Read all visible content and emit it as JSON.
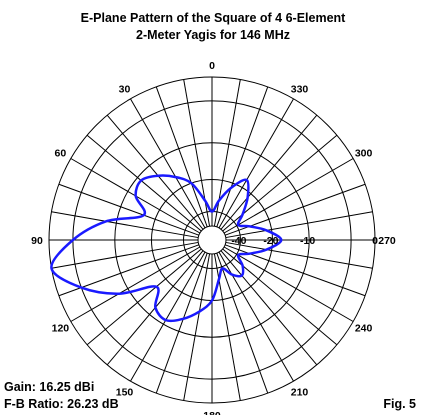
{
  "chart_data": {
    "type": "polar",
    "title": "E-Plane Pattern of the Square of 4 6-Element",
    "subtitle": "2-Meter Yagis for 146 MHz",
    "angle_labels": [
      {
        "deg": 0,
        "text": "0"
      },
      {
        "deg": 30,
        "text": "30"
      },
      {
        "deg": 60,
        "text": "60"
      },
      {
        "deg": 90,
        "text": "90"
      },
      {
        "deg": 120,
        "text": "120"
      },
      {
        "deg": 150,
        "text": "150"
      },
      {
        "deg": 180,
        "text": "180"
      },
      {
        "deg": 210,
        "text": "210"
      },
      {
        "deg": 240,
        "text": "240"
      },
      {
        "deg": 270,
        "text": "270"
      },
      {
        "deg": 300,
        "text": "300"
      },
      {
        "deg": 330,
        "text": "330"
      }
    ],
    "radial_labels": [
      "0",
      "-10",
      "-20",
      "-40"
    ],
    "radial_unit": "dB",
    "spoke_step_deg": 10,
    "series": [
      {
        "color": "#1a1aff",
        "values_db": [
          -40,
          -30,
          -20,
          -16,
          -13,
          -11,
          -12,
          -16,
          -8,
          -3,
          0,
          -3,
          -8,
          -16,
          -12,
          -11,
          -13,
          -16,
          -20,
          -30,
          -38,
          -30,
          -26.2,
          -30,
          -38,
          -30,
          -22,
          -17,
          -22,
          -30,
          -38,
          -30,
          -22,
          -17,
          -22,
          -30
        ]
      }
    ]
  },
  "annotations": {
    "gain": "Gain:  16.25 dBi",
    "fb_ratio": "F-B Ratio: 26.23 dB",
    "figure": "Fig. 5"
  }
}
